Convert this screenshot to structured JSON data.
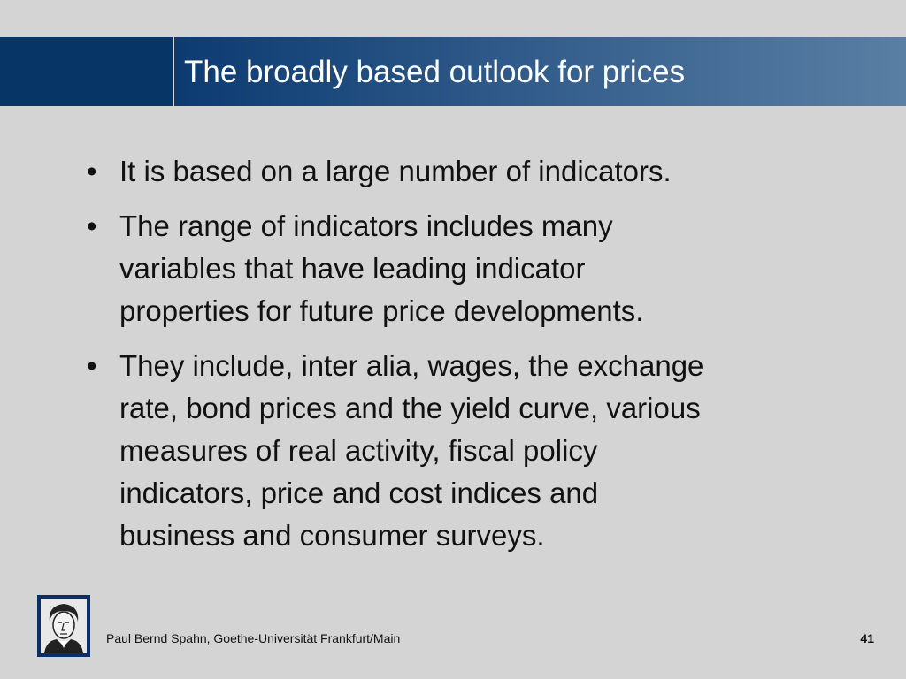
{
  "header": {
    "title": "The broadly based outlook for prices"
  },
  "bullets": [
    [
      "It is based on a large number of indicators."
    ],
    [
      "The range of indicators includes many",
      "variables that have leading indicator",
      "properties for future price developments."
    ],
    [
      "They include, inter alia, wages, the exchange",
      "rate, bond prices and the yield curve, various",
      "measures of real activity, fiscal policy",
      "indicators, price and cost indices and",
      "business and consumer surveys."
    ]
  ],
  "footer": {
    "author": "Paul Bernd Spahn, Goethe-Universität Frankfurt/Main",
    "page": "41"
  }
}
